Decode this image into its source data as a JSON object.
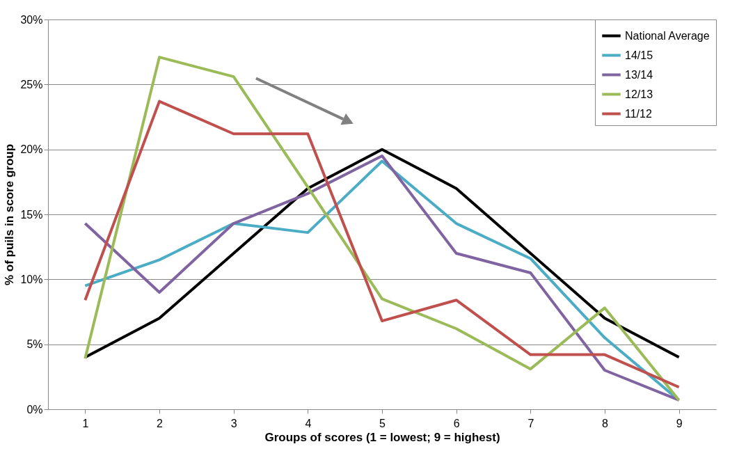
{
  "chart_data": {
    "type": "line",
    "xlabel": "Groups of scores (1 = lowest; 9 = highest)",
    "ylabel": "% of puils in score group",
    "categories": [
      "1",
      "2",
      "3",
      "4",
      "5",
      "6",
      "7",
      "8",
      "9"
    ],
    "series": [
      {
        "name": "National Average",
        "color": "#000000",
        "values": [
          4.0,
          7.0,
          12.0,
          17.0,
          20.0,
          17.0,
          12.0,
          7.0,
          4.0
        ]
      },
      {
        "name": "14/15",
        "color": "#4bacc6",
        "values": [
          9.5,
          11.5,
          14.3,
          13.6,
          19.1,
          14.3,
          11.6,
          5.5,
          0.7
        ]
      },
      {
        "name": "13/14",
        "color": "#8064a2",
        "values": [
          14.3,
          9.0,
          14.3,
          16.6,
          19.5,
          12.0,
          10.5,
          3.0,
          0.7
        ]
      },
      {
        "name": "12/13",
        "color": "#9bbb59",
        "values": [
          3.9,
          27.1,
          25.6,
          17.1,
          8.5,
          6.2,
          3.1,
          7.8,
          0.7
        ]
      },
      {
        "name": "11/12",
        "color": "#c0504d",
        "values": [
          8.4,
          23.7,
          21.2,
          21.2,
          6.8,
          8.4,
          4.2,
          4.2,
          1.7
        ]
      }
    ],
    "ylim": [
      0,
      30
    ],
    "yticks": [
      {
        "value": 0,
        "label": "0%"
      },
      {
        "value": 5,
        "label": "5%"
      },
      {
        "value": 10,
        "label": "10%"
      },
      {
        "value": 15,
        "label": "15%"
      },
      {
        "value": 20,
        "label": "20%"
      },
      {
        "value": 25,
        "label": "25%"
      },
      {
        "value": 30,
        "label": "30%"
      }
    ],
    "grid": "y",
    "legend": "top right",
    "marker": "none",
    "line_style": "solid"
  }
}
